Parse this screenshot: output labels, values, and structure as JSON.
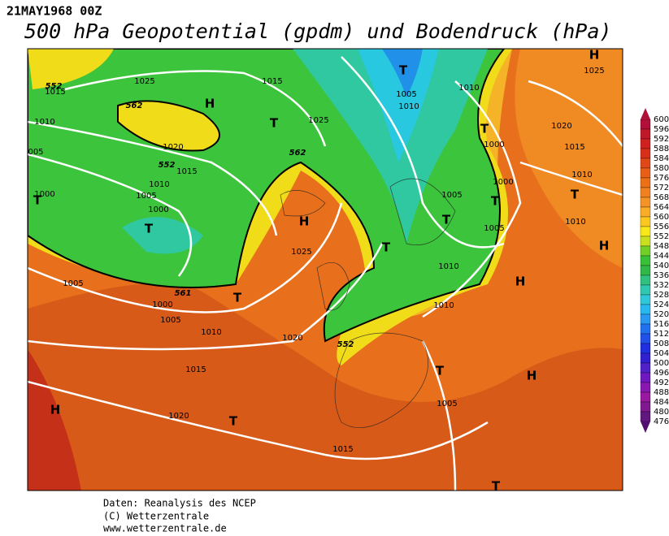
{
  "header": {
    "date": "21MAY1968 00Z",
    "title": "500 hPa Geopotential (gpdm) und Bodendruck (hPa)"
  },
  "map": {
    "isobar_labels": [
      "1025",
      "1015",
      "1010",
      "005",
      "1020",
      "1015",
      "1010",
      "1005",
      "1000",
      "1000",
      "1005",
      "1000",
      "1005",
      "1010",
      "1015",
      "1020",
      "1015",
      "1025",
      "1025",
      "1020",
      "1005",
      "1010",
      "1010",
      "1000",
      "1000",
      "1005",
      "1005",
      "1010",
      "1010",
      "1005",
      "1015",
      "1025",
      "1020",
      "1015",
      "1010",
      "1010"
    ],
    "contour_labels": [
      "552",
      "562",
      "552",
      "562",
      "561",
      "552"
    ],
    "pressure_centers": [
      "T",
      "H",
      "H",
      "T",
      "T",
      "T",
      "T",
      "H",
      "T",
      "T",
      "T",
      "T",
      "H",
      "H",
      "T",
      "T",
      "H",
      "H",
      "T",
      "T"
    ]
  },
  "colorbar": {
    "labels": [
      600,
      596,
      592,
      588,
      584,
      580,
      576,
      572,
      568,
      564,
      560,
      556,
      552,
      548,
      544,
      540,
      536,
      532,
      528,
      524,
      520,
      516,
      512,
      508,
      504,
      500,
      496,
      492,
      488,
      484,
      480,
      476
    ]
  },
  "footer": {
    "lines": [
      "Daten: Reanalysis des NCEP",
      "(C) Wetterzentrale",
      "www.wetterzentrale.de"
    ]
  }
}
